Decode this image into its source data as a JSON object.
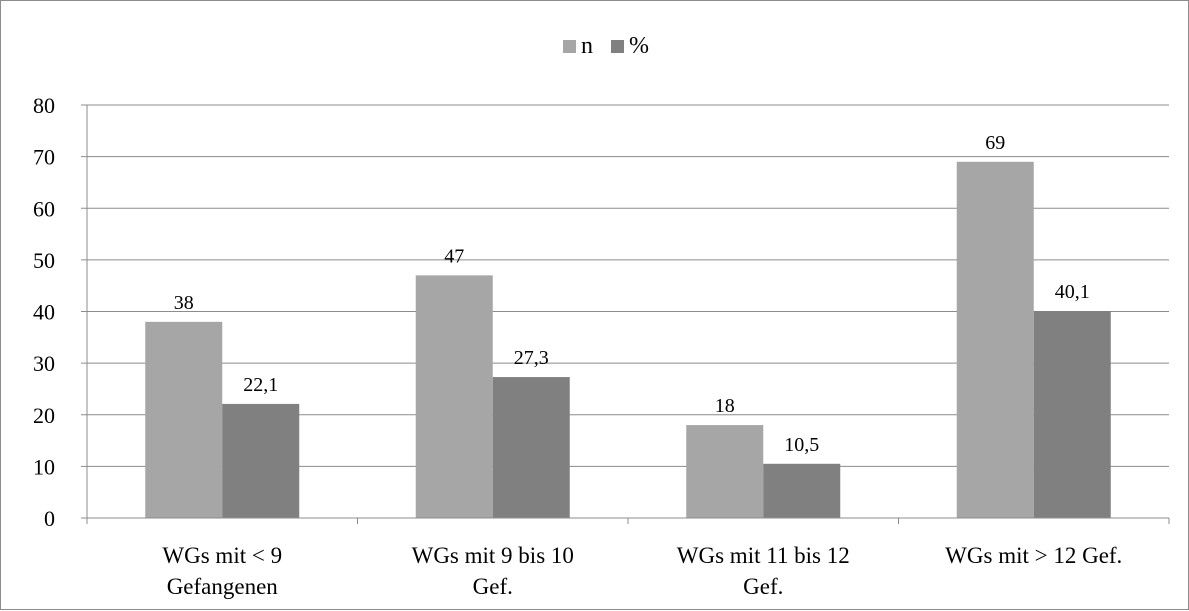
{
  "chart_data": {
    "type": "bar",
    "categories": [
      [
        "WGs mit < 9",
        "Gefangenen"
      ],
      [
        "WGs mit 9 bis 10",
        "Gef."
      ],
      [
        "WGs mit 11 bis 12",
        "Gef."
      ],
      [
        "WGs mit > 12 Gef."
      ]
    ],
    "series": [
      {
        "name": "n",
        "values": [
          38,
          47,
          18,
          69
        ],
        "labels": [
          "38",
          "47",
          "18",
          "69"
        ],
        "color": "#a6a6a6"
      },
      {
        "name": "%",
        "values": [
          22.1,
          27.3,
          10.5,
          40.1
        ],
        "labels": [
          "22,1",
          "27,3",
          "10,5",
          "40,1"
        ],
        "color": "#808080"
      }
    ],
    "ylim": [
      0,
      80
    ],
    "yticks": [
      0,
      10,
      20,
      30,
      40,
      50,
      60,
      70,
      80
    ],
    "grid": true,
    "legend": "top-center",
    "title": "",
    "xlabel": "",
    "ylabel": ""
  }
}
